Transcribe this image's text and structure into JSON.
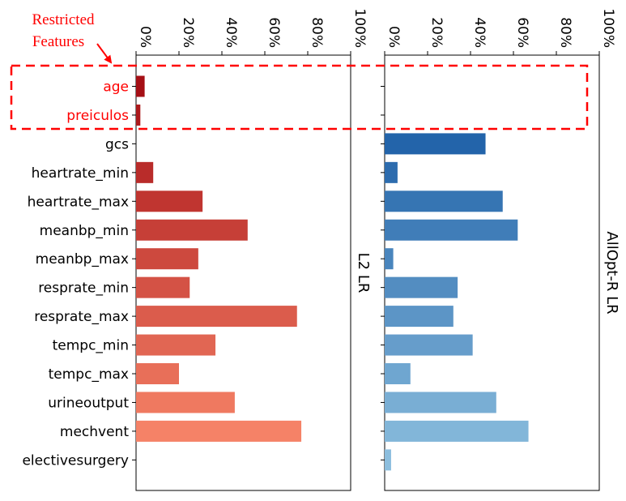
{
  "chart_data": {
    "type": "bar",
    "orientation": "horizontal",
    "axis_position": "top",
    "tick_labels": [
      "0%",
      "20%",
      "40%",
      "60%",
      "80%",
      "100%"
    ],
    "xlim": [
      0,
      100
    ],
    "categories": [
      "age",
      "preiculos",
      "gcs",
      "heartrate_min",
      "heartrate_max",
      "meanbp_min",
      "meanbp_max",
      "resprate_min",
      "resprate_max",
      "tempc_min",
      "tempc_max",
      "urineoutput",
      "mechvent",
      "electivesurgery"
    ],
    "restricted_categories": [
      "age",
      "preiculos"
    ],
    "series": [
      {
        "name": "L2 LR",
        "colormap": "Reds",
        "values": [
          4,
          2,
          0,
          8,
          31,
          52,
          29,
          25,
          75,
          37,
          20,
          46,
          77,
          0
        ]
      },
      {
        "name": "AllOpt-R LR",
        "colormap": "Blues",
        "values": [
          0,
          0,
          47,
          6,
          55,
          62,
          4,
          34,
          32,
          41,
          12,
          52,
          67,
          3
        ]
      }
    ],
    "annotation": {
      "line1": "Restricted",
      "line2": "Features"
    }
  }
}
